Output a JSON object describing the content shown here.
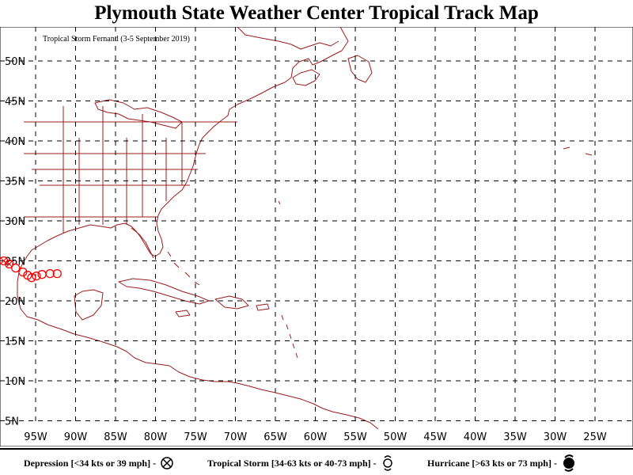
{
  "title": "Plymouth State Weather Center Tropical Track Map",
  "storm_label": "Tropical Storm Fernand (3-5 September 2019)",
  "map": {
    "lat_labels": [
      "50N",
      "45N",
      "40N",
      "35N",
      "30N",
      "25N",
      "20N",
      "15N",
      "10N",
      "5N"
    ],
    "lat_values": [
      50,
      45,
      40,
      35,
      30,
      25,
      20,
      15,
      10,
      5
    ],
    "lon_labels": [
      "95W",
      "90W",
      "85W",
      "80W",
      "75W",
      "70W",
      "65W",
      "60W",
      "55W",
      "50W",
      "45W",
      "40W",
      "35W",
      "30W",
      "25W"
    ],
    "lon_values": [
      -95,
      -90,
      -85,
      -80,
      -75,
      -70,
      -65,
      -60,
      -55,
      -50,
      -45,
      -40,
      -35,
      -30,
      -25
    ],
    "colors": {
      "land": "#9b1c1c",
      "grid": "#000000",
      "track": "#ff0000"
    }
  },
  "track": [
    {
      "lon": -92.3,
      "lat": 23.4,
      "category": "tropical-storm"
    },
    {
      "lon": -93.2,
      "lat": 23.4,
      "category": "tropical-storm"
    },
    {
      "lon": -94.2,
      "lat": 23.3,
      "category": "tropical-storm"
    },
    {
      "lon": -94.9,
      "lat": 23.1,
      "category": "tropical-storm"
    },
    {
      "lon": -95.5,
      "lat": 22.9,
      "category": "tropical-storm"
    },
    {
      "lon": -96.0,
      "lat": 23.2,
      "category": "tropical-storm"
    },
    {
      "lon": -96.6,
      "lat": 23.6,
      "category": "tropical-storm"
    },
    {
      "lon": -97.5,
      "lat": 24.1,
      "category": "tropical-storm"
    },
    {
      "lon": -98.3,
      "lat": 24.6,
      "category": "depression"
    },
    {
      "lon": -99.0,
      "lat": 25.0,
      "category": "depression"
    }
  ],
  "legend": {
    "depression": "Depression [<34 kts or 39 mph] -",
    "tropical_storm": "Tropical Storm [34-63 kts or 40-73 mph] -",
    "hurricane": "Hurricane [>63 kts or 73 mph] -"
  }
}
